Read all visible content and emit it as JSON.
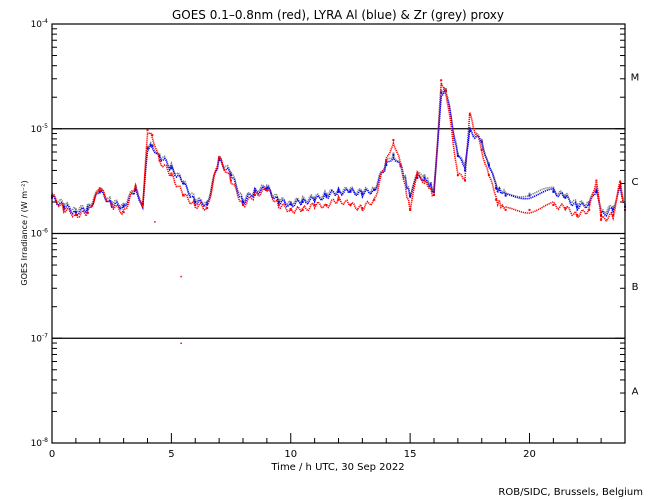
{
  "chart_data": {
    "type": "scatter",
    "title": "GOES 0.1–0.8nm (red), LYRA Al (blue) & Zr (grey) proxy",
    "xlabel": "Time / h UTC, 30 Sep 2022",
    "ylabel": "GOES Irradiance / (W m⁻²)",
    "xlim": [
      0,
      24
    ],
    "ylim": [
      1e-08,
      0.0001
    ],
    "yscale": "log",
    "x_ticks": [
      "0",
      "5",
      "10",
      "15",
      "20"
    ],
    "x_tick_values": [
      0,
      5,
      10,
      15,
      20
    ],
    "y_ticks": [
      {
        "base": "10",
        "exp": "-4",
        "value": 0.0001
      },
      {
        "base": "10",
        "exp": "-5",
        "value": 1e-05
      },
      {
        "base": "10",
        "exp": "-6",
        "value": 1e-06
      },
      {
        "base": "10",
        "exp": "-7",
        "value": 1e-07
      },
      {
        "base": "10",
        "exp": "-8",
        "value": 1e-08
      }
    ],
    "flare_classes": [
      {
        "label": "M",
        "value": 3.16e-05
      },
      {
        "label": "C",
        "value": 3.16e-06
      },
      {
        "label": "B",
        "value": 3.16e-07
      },
      {
        "label": "A",
        "value": 3.16e-08
      }
    ],
    "reference_lines": [
      1e-05,
      1e-06,
      1e-07
    ],
    "x": [
      0,
      0.5,
      1,
      1.5,
      2,
      2.5,
      3,
      3.5,
      3.8,
      4,
      4.2,
      4.5,
      5,
      5.5,
      6,
      6.5,
      7,
      7.5,
      8,
      8.5,
      9,
      9.5,
      10,
      10.5,
      11,
      11.5,
      12,
      12.5,
      13,
      13.5,
      14,
      14.3,
      14.6,
      15,
      15.3,
      15.6,
      16,
      16.3,
      16.5,
      17,
      17.3,
      17.5,
      18,
      18.3,
      18.6,
      19,
      20,
      21,
      21.5,
      22,
      22.5,
      22.8,
      23,
      23.5,
      23.8,
      24
    ],
    "series": [
      {
        "name": "GOES 0.1-0.8nm",
        "color": "#ff0000",
        "values": [
          2.3e-06,
          1.7e-06,
          1.5e-06,
          1.57e-06,
          2.7e-06,
          1.87e-06,
          1.6e-06,
          2.84e-06,
          1.87e-06,
          9.7e-06,
          8.7e-06,
          5e-06,
          3.6e-06,
          2.33e-06,
          1.87e-06,
          1.75e-06,
          5.3e-06,
          3.2e-06,
          1.87e-06,
          2.33e-06,
          2.6e-06,
          1.87e-06,
          1.68e-06,
          1.68e-06,
          1.87e-06,
          1.87e-06,
          2.1e-06,
          1.87e-06,
          1.75e-06,
          2.1e-06,
          5e-06,
          7.8e-06,
          4.5e-06,
          1.68e-06,
          3.6e-06,
          3.2e-06,
          2.33e-06,
          2.9e-05,
          2.3e-05,
          3.6e-06,
          3.2e-06,
          1.35e-05,
          6.3e-06,
          3.6e-06,
          2.1e-06,
          1.68e-06,
          1.68e-06,
          1.87e-06,
          1.75e-06,
          1.5e-06,
          1.68e-06,
          3.2e-06,
          1.35e-06,
          1.5e-06,
          3.1e-06,
          1.68e-06
        ]
      },
      {
        "name": "LYRA Al proxy",
        "color": "#0000ff",
        "values": [
          2.2e-06,
          1.8e-06,
          1.6e-06,
          1.7e-06,
          2.5e-06,
          1.9e-06,
          1.8e-06,
          2.6e-06,
          1.9e-06,
          6.5e-06,
          6.8e-06,
          5.5e-06,
          4.2e-06,
          3e-06,
          2e-06,
          1.9e-06,
          5e-06,
          3.6e-06,
          2e-06,
          2.5e-06,
          2.7e-06,
          2e-06,
          1.9e-06,
          2e-06,
          2.1e-06,
          2.3e-06,
          2.5e-06,
          2.5e-06,
          2.4e-06,
          2.6e-06,
          4.5e-06,
          5.6e-06,
          4.4e-06,
          2.3e-06,
          3.4e-06,
          3.4e-06,
          2.5e-06,
          2.2e-05,
          2.3e-05,
          5.5e-06,
          4e-06,
          9.5e-06,
          7.5e-06,
          4.5e-06,
          2.7e-06,
          2.3e-06,
          2.3e-06,
          2.5e-06,
          2.2e-06,
          1.8e-06,
          1.9e-06,
          2.5e-06,
          1.5e-06,
          1.7e-06,
          2.8e-06,
          1.8e-06
        ]
      },
      {
        "name": "LYRA Zr proxy",
        "color": "#808080",
        "values": [
          2.3e-06,
          1.9e-06,
          1.7e-06,
          1.8e-06,
          2.6e-06,
          2e-06,
          1.9e-06,
          2.7e-06,
          2e-06,
          6.7e-06,
          7e-06,
          5.7e-06,
          4.4e-06,
          3.1e-06,
          2.1e-06,
          2e-06,
          5.2e-06,
          3.8e-06,
          2.1e-06,
          2.6e-06,
          2.8e-06,
          2.1e-06,
          2e-06,
          2.1e-06,
          2.2e-06,
          2.4e-06,
          2.6e-06,
          2.6e-06,
          2.5e-06,
          2.7e-06,
          4.7e-06,
          5.8e-06,
          4.6e-06,
          2.4e-06,
          3.6e-06,
          3.6e-06,
          2.6e-06,
          2.3e-05,
          2.4e-05,
          5.8e-06,
          4.2e-06,
          9.8e-06,
          7.8e-06,
          4.7e-06,
          2.8e-06,
          2.4e-06,
          2.4e-06,
          2.6e-06,
          2.3e-06,
          1.9e-06,
          2e-06,
          2.6e-06,
          1.6e-06,
          1.8e-06,
          2.9e-06,
          1.9e-06
        ]
      }
    ],
    "outliers": [
      {
        "series": "GOES 0.1-0.8nm",
        "x": 4.3,
        "y": 1.3e-06
      },
      {
        "series": "GOES 0.1-0.8nm",
        "x": 5.4,
        "y": 3.9e-07
      },
      {
        "series": "GOES 0.1-0.8nm",
        "x": 5.4,
        "y": 9e-08
      }
    ],
    "legend": "none",
    "grid": false
  },
  "footer": {
    "credit": "ROB/SIDC, Brussels, Belgium"
  }
}
